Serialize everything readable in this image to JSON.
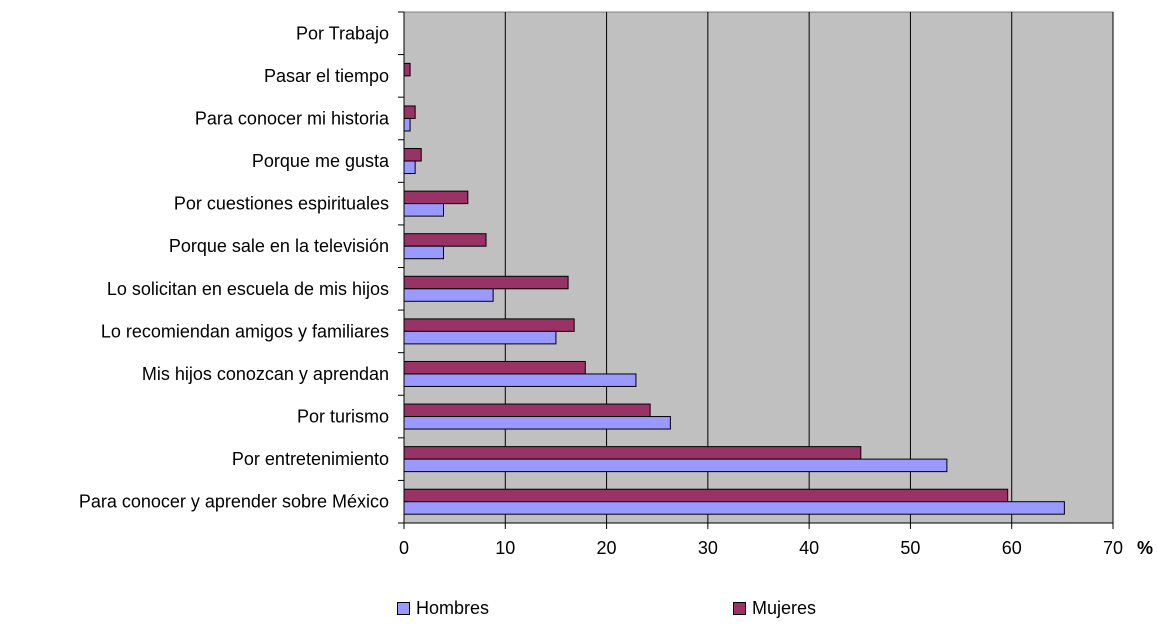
{
  "chart_data": {
    "type": "bar",
    "orientation": "horizontal",
    "categories": [
      "Para conocer y aprender sobre México",
      "Por entretenimiento",
      "Por turismo",
      "Mis hijos conozcan y aprendan",
      "Lo recomiendan amigos y familiares",
      "Lo solicitan en escuela de mis hijos",
      "Porque sale en la televisión",
      "Por cuestiones espirituales",
      "Porque me gusta",
      "Para conocer mi historia",
      "Pasar el tiempo",
      "Por Trabajo"
    ],
    "series": [
      {
        "name": "Hombres",
        "color": "#9999ff",
        "values": [
          65.2,
          53.6,
          26.3,
          22.9,
          15.0,
          8.8,
          3.9,
          3.9,
          1.1,
          0.6,
          0,
          0
        ]
      },
      {
        "name": "Mujeres",
        "color": "#993366",
        "values": [
          59.6,
          45.1,
          24.3,
          17.9,
          16.8,
          16.2,
          8.1,
          6.3,
          1.7,
          1.1,
          0.6,
          0
        ]
      }
    ],
    "x_ticks": [
      "0",
      "10",
      "20",
      "30",
      "40",
      "50",
      "60",
      "70"
    ],
    "xlim": [
      0,
      70
    ],
    "x_unit": "%",
    "plot_background": "#c0c0c0",
    "grid": true,
    "legend_position": "bottom"
  }
}
